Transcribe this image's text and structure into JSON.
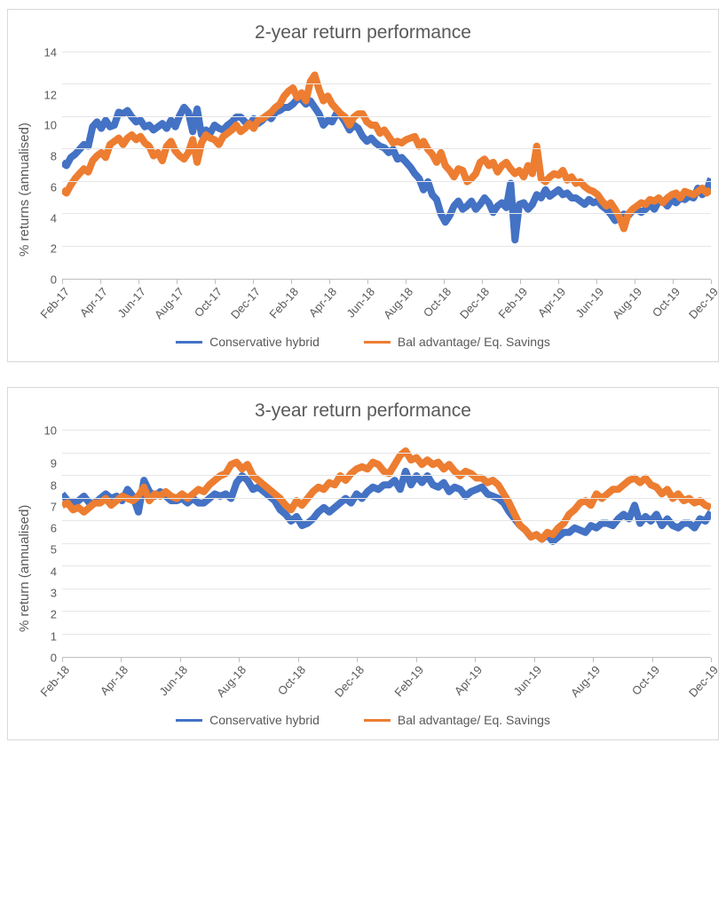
{
  "colors": {
    "series1": "#4472c4",
    "series2": "#ed7d31",
    "grid": "#e6e6e6",
    "axis": "#bfbfbf",
    "text": "#595959",
    "border": "#d9d9d9",
    "bg": "#ffffff"
  },
  "common": {
    "legend_series1": "Conservative hybrid",
    "legend_series2": "Bal advantage/ Eq. Savings",
    "line_width": 2.0,
    "title_fontsize": 21,
    "axis_label_fontsize": 15,
    "tick_fontsize": 13,
    "legend_fontsize": 14,
    "x_tick_rotation_deg": -48
  },
  "chart1": {
    "type": "line",
    "title": "2-year return performance",
    "ylabel": "% returns (annualised)",
    "ylim": [
      0,
      14
    ],
    "ytick_step": 2,
    "yticks": [
      0,
      2,
      4,
      6,
      8,
      10,
      12,
      14
    ],
    "x_labels": [
      "Feb-17",
      "Apr-17",
      "Jun-17",
      "Aug-17",
      "Oct-17",
      "Dec-17",
      "Feb-18",
      "Apr-18",
      "Jun-18",
      "Aug-18",
      "Oct-18",
      "Dec-18",
      "Feb-19",
      "Apr-19",
      "Jun-19",
      "Aug-19",
      "Oct-19",
      "Dec-19"
    ],
    "n_points": 150,
    "series1_values": [
      7.2,
      7.0,
      7.5,
      7.7,
      8.0,
      8.3,
      8.2,
      9.4,
      9.7,
      9.3,
      9.8,
      9.4,
      9.5,
      10.3,
      10.2,
      10.4,
      10.0,
      9.7,
      9.8,
      9.4,
      9.5,
      9.2,
      9.4,
      9.6,
      9.3,
      9.8,
      9.4,
      10.1,
      10.6,
      10.3,
      9.1,
      10.5,
      8.9,
      9.2,
      9.0,
      9.5,
      9.3,
      9.2,
      9.5,
      9.7,
      10.0,
      10.0,
      9.7,
      9.5,
      9.9,
      9.6,
      9.8,
      10.1,
      9.9,
      10.3,
      10.4,
      10.6,
      10.6,
      10.8,
      11.1,
      11.1,
      10.8,
      11.0,
      10.6,
      10.2,
      9.5,
      9.8,
      9.7,
      10.2,
      10.1,
      9.7,
      9.2,
      9.5,
      9.3,
      8.8,
      8.5,
      8.7,
      8.4,
      8.2,
      8.1,
      7.8,
      8.0,
      7.4,
      7.5,
      7.2,
      6.9,
      6.5,
      6.2,
      5.5,
      6.0,
      5.2,
      4.9,
      4.0,
      3.5,
      3.9,
      4.5,
      4.8,
      4.3,
      4.5,
      4.8,
      4.3,
      4.6,
      5.0,
      4.7,
      4.1,
      4.5,
      4.7,
      4.4,
      5.9,
      2.4,
      4.6,
      4.7,
      4.3,
      4.6,
      5.2,
      5.0,
      5.5,
      5.1,
      5.3,
      5.5,
      5.2,
      5.3,
      5.0,
      5.0,
      4.8,
      4.6,
      4.9,
      4.7,
      4.8,
      4.5,
      4.3,
      4.0,
      3.6,
      3.8,
      4.0,
      3.9,
      4.2,
      4.3,
      4.1,
      4.3,
      4.6,
      4.3,
      4.8,
      4.8,
      4.5,
      4.9,
      4.7,
      5.0,
      4.9,
      5.1,
      5.0,
      5.6,
      5.2,
      5.4,
      6.2
    ],
    "series2_values": [
      5.5,
      5.3,
      5.8,
      6.2,
      6.5,
      6.8,
      6.6,
      7.3,
      7.6,
      7.8,
      7.5,
      8.3,
      8.5,
      8.7,
      8.3,
      8.7,
      8.9,
      8.6,
      8.8,
      8.4,
      8.2,
      7.6,
      7.8,
      7.3,
      8.2,
      8.5,
      7.9,
      7.6,
      7.4,
      7.8,
      8.6,
      7.2,
      8.4,
      8.9,
      8.7,
      8.6,
      8.3,
      8.8,
      9.0,
      9.2,
      9.5,
      9.1,
      9.3,
      9.6,
      9.3,
      9.8,
      9.9,
      10.1,
      10.3,
      10.6,
      10.8,
      11.3,
      11.6,
      11.8,
      11.2,
      11.5,
      11.0,
      12.2,
      12.6,
      11.7,
      11.0,
      11.3,
      10.8,
      10.5,
      10.2,
      10.0,
      9.5,
      10.0,
      10.2,
      10.2,
      9.7,
      9.5,
      9.5,
      9.0,
      9.2,
      8.8,
      8.4,
      8.5,
      8.4,
      8.6,
      8.7,
      8.8,
      8.2,
      8.5,
      8.0,
      7.7,
      7.2,
      7.8,
      7.0,
      6.7,
      6.3,
      6.8,
      6.7,
      6.0,
      6.2,
      6.5,
      7.2,
      7.4,
      7.0,
      7.2,
      6.6,
      7.0,
      7.2,
      6.8,
      6.5,
      6.7,
      6.3,
      7.0,
      6.5,
      8.2,
      6.2,
      6.0,
      6.3,
      6.5,
      6.4,
      6.7,
      6.1,
      6.3,
      5.9,
      6.0,
      5.7,
      5.5,
      5.4,
      5.2,
      4.8,
      4.5,
      4.7,
      4.3,
      3.8,
      3.1,
      4.0,
      4.3,
      4.5,
      4.7,
      4.6,
      4.9,
      4.8,
      5.0,
      4.7,
      5.0,
      5.2,
      5.3,
      5.0,
      5.4,
      5.3,
      5.2,
      5.4,
      5.6,
      5.3,
      5.5
    ]
  },
  "chart2": {
    "type": "line",
    "title": "3-year return performance",
    "ylabel": "% return (annualised)",
    "ylim": [
      0,
      10
    ],
    "ytick_step": 1,
    "yticks": [
      0,
      1,
      2,
      3,
      4,
      5,
      6,
      7,
      8,
      9,
      10
    ],
    "x_labels": [
      "Feb-18",
      "Apr-18",
      "Jun-18",
      "Aug-18",
      "Oct-18",
      "Dec-18",
      "Feb-19",
      "Apr-19",
      "Jun-19",
      "Aug-19",
      "Oct-19",
      "Dec-19"
    ],
    "n_points": 120,
    "series1_values": [
      7.2,
      6.9,
      6.8,
      6.9,
      7.1,
      6.8,
      6.8,
      7.0,
      7.2,
      7.0,
      7.1,
      6.9,
      7.4,
      7.1,
      6.4,
      7.8,
      7.3,
      7.1,
      7.3,
      7.1,
      6.9,
      6.9,
      7.0,
      6.8,
      7.0,
      6.8,
      6.8,
      7.0,
      7.2,
      7.1,
      7.2,
      7.0,
      7.7,
      8.0,
      7.8,
      7.4,
      7.5,
      7.3,
      7.1,
      6.9,
      6.5,
      6.3,
      6.0,
      6.2,
      5.8,
      5.9,
      6.1,
      6.4,
      6.6,
      6.4,
      6.6,
      6.8,
      7.0,
      6.8,
      7.2,
      7.0,
      7.3,
      7.5,
      7.4,
      7.6,
      7.6,
      7.8,
      7.4,
      8.2,
      7.6,
      8.0,
      7.7,
      8.0,
      7.6,
      7.5,
      7.7,
      7.3,
      7.5,
      7.4,
      7.1,
      7.3,
      7.4,
      7.5,
      7.2,
      7.1,
      7.0,
      6.8,
      6.4,
      6.1,
      5.8,
      5.6,
      5.3,
      5.4,
      5.2,
      5.4,
      5.1,
      5.3,
      5.5,
      5.5,
      5.7,
      5.6,
      5.5,
      5.8,
      5.7,
      5.9,
      5.9,
      5.8,
      6.1,
      6.3,
      6.1,
      6.7,
      5.9,
      6.2,
      6.0,
      6.3,
      5.8,
      6.1,
      5.8,
      5.7,
      5.9,
      5.9,
      5.7,
      6.1,
      6.0,
      6.4
    ],
    "series2_values": [
      6.7,
      6.8,
      6.5,
      6.6,
      6.4,
      6.6,
      6.8,
      6.8,
      7.0,
      6.7,
      6.9,
      7.1,
      7.0,
      6.9,
      7.1,
      7.5,
      6.9,
      7.2,
      7.1,
      7.3,
      7.1,
      7.0,
      7.2,
      7.0,
      7.2,
      7.4,
      7.3,
      7.6,
      7.8,
      8.0,
      8.1,
      8.5,
      8.6,
      8.3,
      8.5,
      8.0,
      7.8,
      7.6,
      7.4,
      7.2,
      7.0,
      6.7,
      6.5,
      6.9,
      6.7,
      7.0,
      7.3,
      7.5,
      7.4,
      7.7,
      7.6,
      8.0,
      7.8,
      8.1,
      8.3,
      8.4,
      8.3,
      8.6,
      8.5,
      8.2,
      8.1,
      8.5,
      8.9,
      9.1,
      8.7,
      8.8,
      8.5,
      8.7,
      8.5,
      8.6,
      8.3,
      8.5,
      8.2,
      8.0,
      8.2,
      8.1,
      7.9,
      7.9,
      7.7,
      7.8,
      7.6,
      7.2,
      6.8,
      6.3,
      5.8,
      5.6,
      5.3,
      5.4,
      5.2,
      5.5,
      5.4,
      5.7,
      5.9,
      6.3,
      6.5,
      6.8,
      6.9,
      6.7,
      7.2,
      7.0,
      7.2,
      7.4,
      7.4,
      7.6,
      7.8,
      7.9,
      7.7,
      7.9,
      7.6,
      7.5,
      7.2,
      7.4,
      7.0,
      7.2,
      6.9,
      7.0,
      6.8,
      6.9,
      6.7,
      6.6
    ]
  }
}
